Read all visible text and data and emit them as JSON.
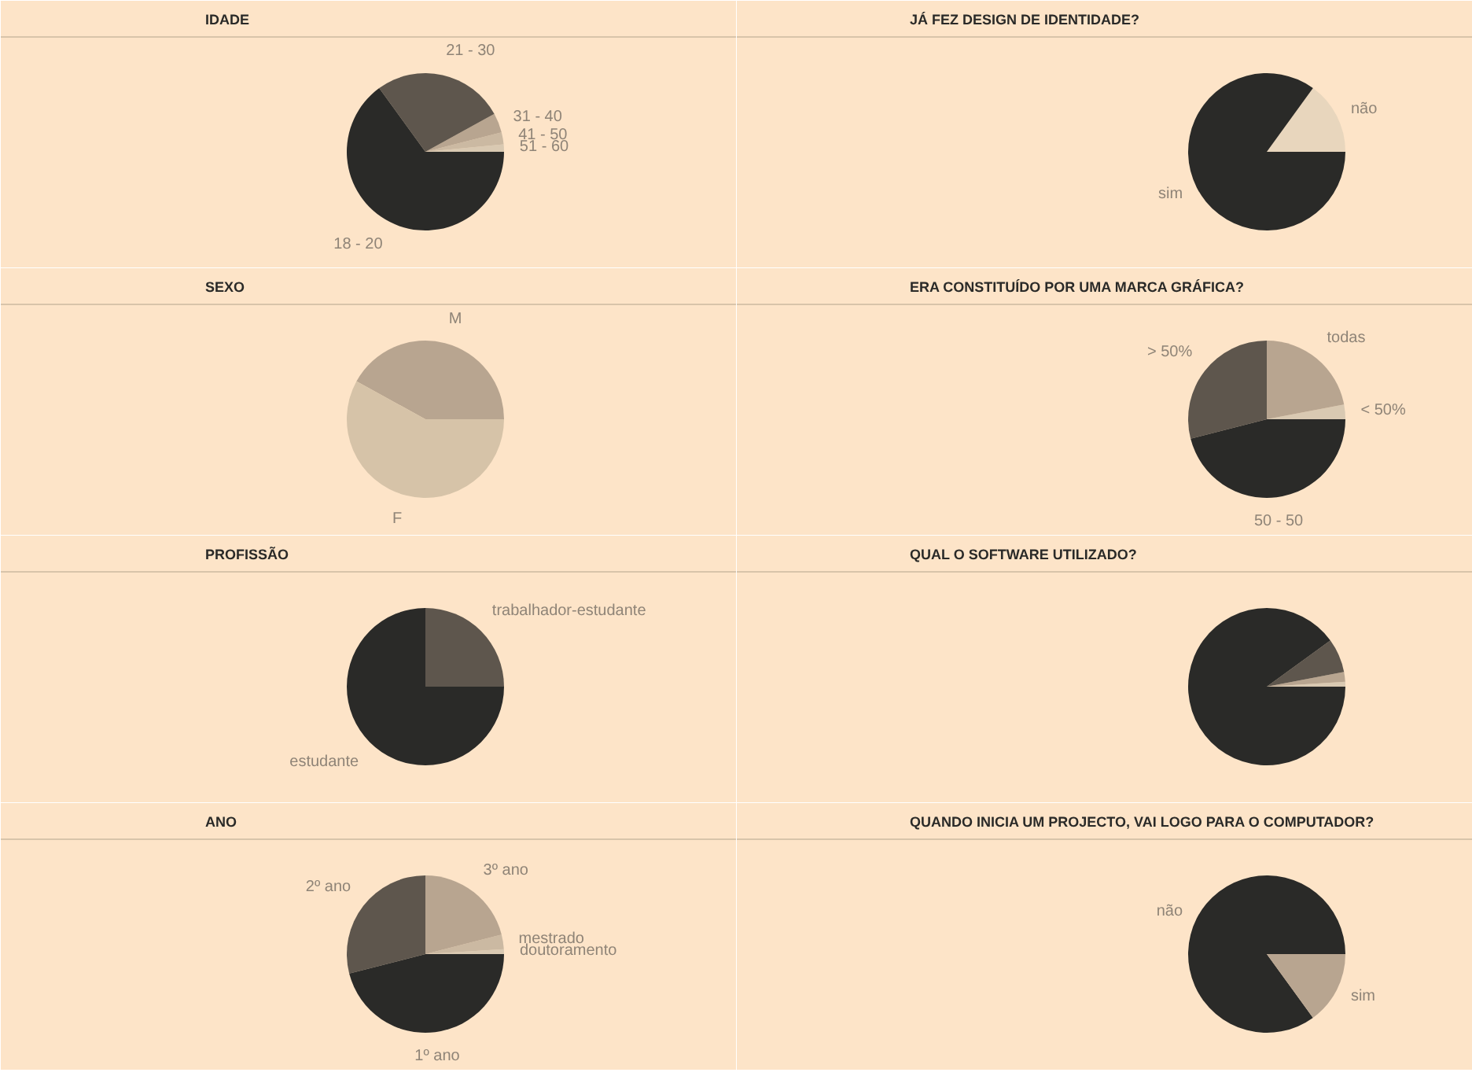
{
  "chart_data": [
    {
      "type": "pie",
      "title": "IDADE",
      "categories": [
        "51 - 60",
        "41 - 50",
        "31 - 40",
        "21 - 30",
        "18 - 20"
      ],
      "values": [
        1.5,
        2.5,
        4,
        27,
        65
      ],
      "colors": [
        "#d9c9b2",
        "#cbb9a2",
        "#b8a590",
        "#5e564d",
        "#2a2a28"
      ]
    },
    {
      "type": "pie",
      "title": "JÁ FEZ DESIGN DE IDENTIDADE?",
      "categories": [
        "não",
        "sim"
      ],
      "values": [
        15,
        85
      ],
      "colors": [
        "#e8d6bd",
        "#2a2a28"
      ]
    },
    {
      "type": "pie",
      "title": "SEXO",
      "categories": [
        "M",
        "F"
      ],
      "values": [
        42,
        58
      ],
      "colors": [
        "#b8a590",
        "#d6c3a8"
      ]
    },
    {
      "type": "pie",
      "title": "ERA CONSTITUÍDO POR UMA MARCA GRÁFICA?",
      "categories": [
        "< 50%",
        "todas",
        "> 50%",
        "50 - 50"
      ],
      "values": [
        3,
        22,
        29,
        46
      ],
      "colors": [
        "#d9c9b2",
        "#b8a590",
        "#5e564d",
        "#2a2a28"
      ]
    },
    {
      "type": "pie",
      "title": "PROFISSÃO",
      "categories": [
        "trabalhador-estudante",
        "estudante"
      ],
      "values": [
        25,
        75
      ],
      "colors": [
        "#5e564d",
        "#2a2a28"
      ]
    },
    {
      "type": "pie",
      "title": "QUAL O SOFTWARE UTILIZADO?",
      "categories": [
        null,
        null,
        null,
        null
      ],
      "values": [
        1,
        2,
        7,
        90
      ],
      "colors": [
        "#d9c9b2",
        "#b8a590",
        "#5e564d",
        "#2a2a28"
      ]
    },
    {
      "type": "pie",
      "title": "ANO",
      "categories": [
        "doutoramento",
        "mestrado",
        "3º ano",
        "2º ano",
        "1º ano"
      ],
      "values": [
        1,
        3,
        21,
        29,
        46
      ],
      "colors": [
        "#d9c9b2",
        "#cbb9a2",
        "#b8a590",
        "#5e564d",
        "#2a2a28"
      ]
    },
    {
      "type": "pie",
      "title": "QUANDO INICIA UM PROJECTO, VAI LOGO PARA O COMPUTADOR?",
      "categories": [
        "não",
        "sim"
      ],
      "values": [
        85,
        15
      ],
      "colors": [
        "#2a2a28",
        "#b8a590"
      ]
    }
  ]
}
